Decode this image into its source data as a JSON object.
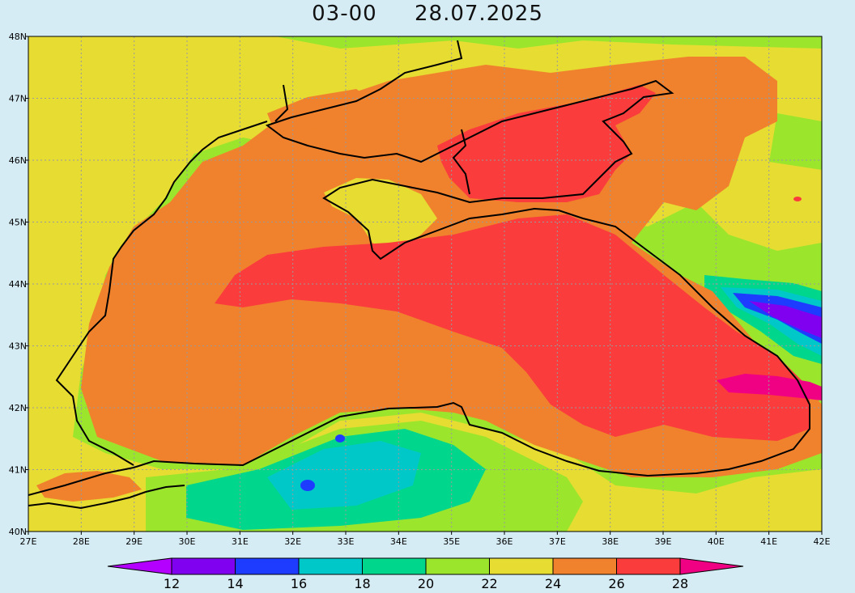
{
  "title": {
    "time": "03-00",
    "date": "28.07.2025"
  },
  "map": {
    "region": "Black Sea",
    "lon_range": [
      27,
      42
    ],
    "lat_range": [
      40,
      48
    ],
    "lon_ticks": [
      "27E",
      "28E",
      "29E",
      "30E",
      "31E",
      "32E",
      "33E",
      "34E",
      "35E",
      "36E",
      "37E",
      "38E",
      "39E",
      "40E",
      "41E",
      "42E"
    ],
    "lat_ticks": [
      "40N",
      "41N",
      "42N",
      "43N",
      "44N",
      "45N",
      "46N",
      "47N",
      "48N"
    ],
    "grid": "dotted"
  },
  "colorbar": {
    "ticks": [
      "12",
      "14",
      "16",
      "18",
      "20",
      "22",
      "24",
      "26",
      "28"
    ],
    "bins": [
      {
        "range": "<12",
        "color": "#b400ff"
      },
      {
        "range": "12-14",
        "color": "#8000f0"
      },
      {
        "range": "14-16",
        "color": "#1e3cff"
      },
      {
        "range": "16-18",
        "color": "#00c8c8"
      },
      {
        "range": "18-20",
        "color": "#00d68c"
      },
      {
        "range": "20-22",
        "color": "#9be62d"
      },
      {
        "range": "22-24",
        "color": "#e6dc32"
      },
      {
        "range": "24-26",
        "color": "#f0822d"
      },
      {
        "range": "26-28",
        "color": "#fa3c3c"
      },
      {
        "range": ">28",
        "color": "#f00082"
      }
    ]
  }
}
